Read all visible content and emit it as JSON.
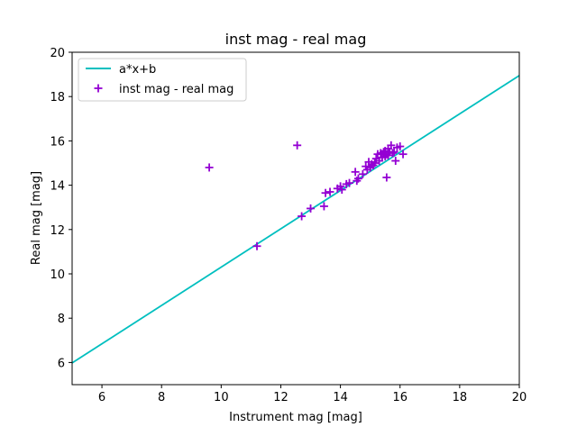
{
  "chart_data": {
    "type": "scatter",
    "title": "inst mag - real mag",
    "xlabel": "Instrument mag [mag]",
    "ylabel": "Real mag [mag]",
    "xlim": [
      5,
      20
    ],
    "ylim": [
      5,
      20
    ],
    "xticks": [
      6,
      8,
      10,
      12,
      14,
      16,
      18,
      20
    ],
    "yticks": [
      6,
      8,
      10,
      12,
      14,
      16,
      18,
      20
    ],
    "grid": false,
    "legend_position": "top-left",
    "series": [
      {
        "name": "a*x+b",
        "kind": "line",
        "color": "#00bfbf",
        "x": [
          5,
          20
        ],
        "y": [
          5.98,
          18.95
        ]
      },
      {
        "name": "inst mag - real mag",
        "kind": "scatter",
        "marker": "plus",
        "color": "#9400d3",
        "x": [
          9.6,
          11.2,
          12.55,
          12.7,
          13.0,
          13.45,
          13.5,
          13.65,
          13.9,
          14.0,
          14.05,
          14.2,
          14.3,
          14.5,
          14.55,
          14.6,
          14.75,
          14.85,
          14.9,
          14.95,
          15.0,
          15.05,
          15.1,
          15.15,
          15.2,
          15.25,
          15.3,
          15.35,
          15.4,
          15.45,
          15.5,
          15.5,
          15.55,
          15.55,
          15.6,
          15.6,
          15.65,
          15.7,
          15.75,
          15.8,
          15.85,
          15.9,
          16.0,
          16.1
        ],
        "y": [
          14.8,
          11.25,
          15.8,
          12.6,
          12.95,
          13.05,
          13.65,
          13.7,
          13.85,
          13.95,
          13.8,
          14.05,
          14.1,
          14.6,
          14.2,
          14.3,
          14.5,
          14.85,
          14.7,
          15.05,
          14.8,
          14.95,
          14.9,
          15.0,
          15.2,
          15.4,
          15.1,
          15.45,
          15.25,
          15.5,
          15.3,
          15.55,
          15.4,
          14.35,
          15.65,
          15.35,
          15.5,
          15.8,
          15.45,
          15.5,
          15.1,
          15.7,
          15.75,
          15.4
        ]
      }
    ]
  }
}
